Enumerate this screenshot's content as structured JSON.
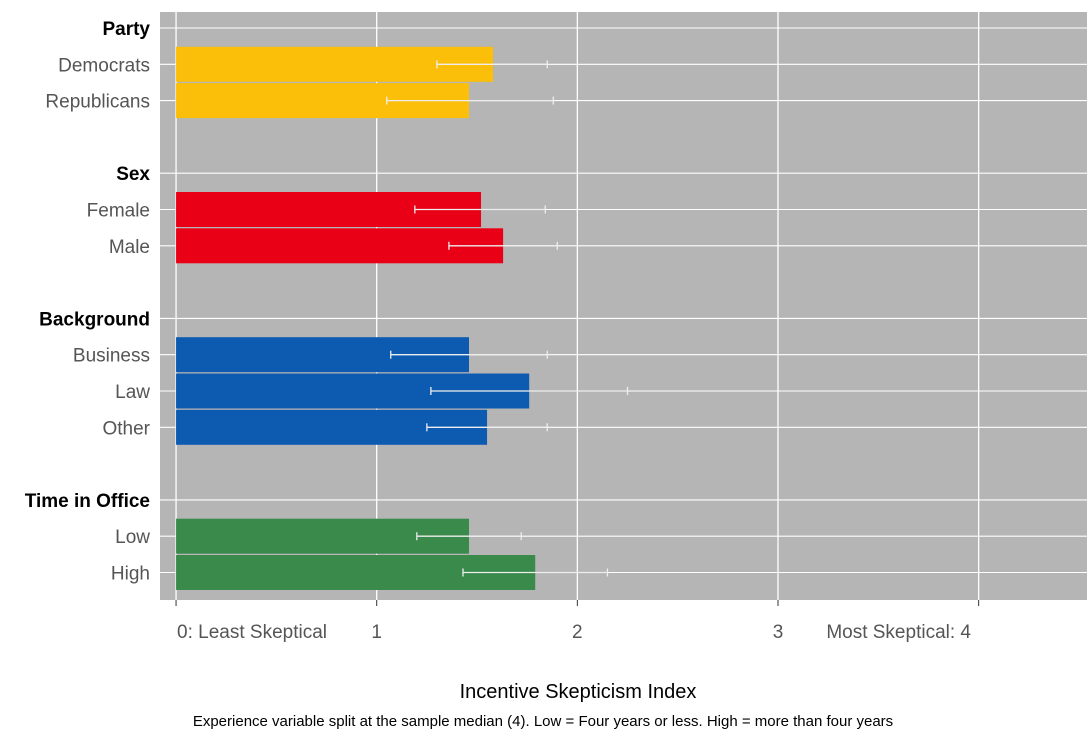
{
  "chart_data": {
    "type": "bar",
    "orientation": "horizontal",
    "xlabel": "Incentive Skepticism Index",
    "caption": "Experience variable split at the sample median (4). Low = Four years or less. High = more than four years",
    "xlim": [
      -0.08,
      4.54
    ],
    "x_ticks": [
      {
        "value": 0,
        "label": "0: Least Skeptical"
      },
      {
        "value": 1,
        "label": "1"
      },
      {
        "value": 2,
        "label": "2"
      },
      {
        "value": 3,
        "label": "3"
      },
      {
        "value": 4,
        "label": "Most Skeptical: 4"
      }
    ],
    "grid": true,
    "background": "#b5b5b5",
    "groups": [
      {
        "name": "Party",
        "color": "#fbbf0a",
        "rows": [
          {
            "label": "Democrats",
            "value": 1.58,
            "ci_low": 1.3,
            "ci_high": 1.85
          },
          {
            "label": "Republicans",
            "value": 1.46,
            "ci_low": 1.05,
            "ci_high": 1.88
          }
        ]
      },
      {
        "name": "Sex",
        "color": "#ea0016",
        "rows": [
          {
            "label": "Female",
            "value": 1.52,
            "ci_low": 1.19,
            "ci_high": 1.84
          },
          {
            "label": "Male",
            "value": 1.63,
            "ci_low": 1.36,
            "ci_high": 1.9
          }
        ]
      },
      {
        "name": "Background",
        "color": "#0d5bb0",
        "rows": [
          {
            "label": "Business",
            "value": 1.46,
            "ci_low": 1.07,
            "ci_high": 1.85
          },
          {
            "label": "Law",
            "value": 1.76,
            "ci_low": 1.27,
            "ci_high": 2.25
          },
          {
            "label": "Other",
            "value": 1.55,
            "ci_low": 1.25,
            "ci_high": 1.85
          }
        ]
      },
      {
        "name": "Time in Office",
        "color": "#3a8a4c",
        "rows": [
          {
            "label": "Low",
            "value": 1.46,
            "ci_low": 1.2,
            "ci_high": 1.72
          },
          {
            "label": "High",
            "value": 1.79,
            "ci_low": 1.43,
            "ci_high": 2.15
          }
        ]
      }
    ]
  }
}
